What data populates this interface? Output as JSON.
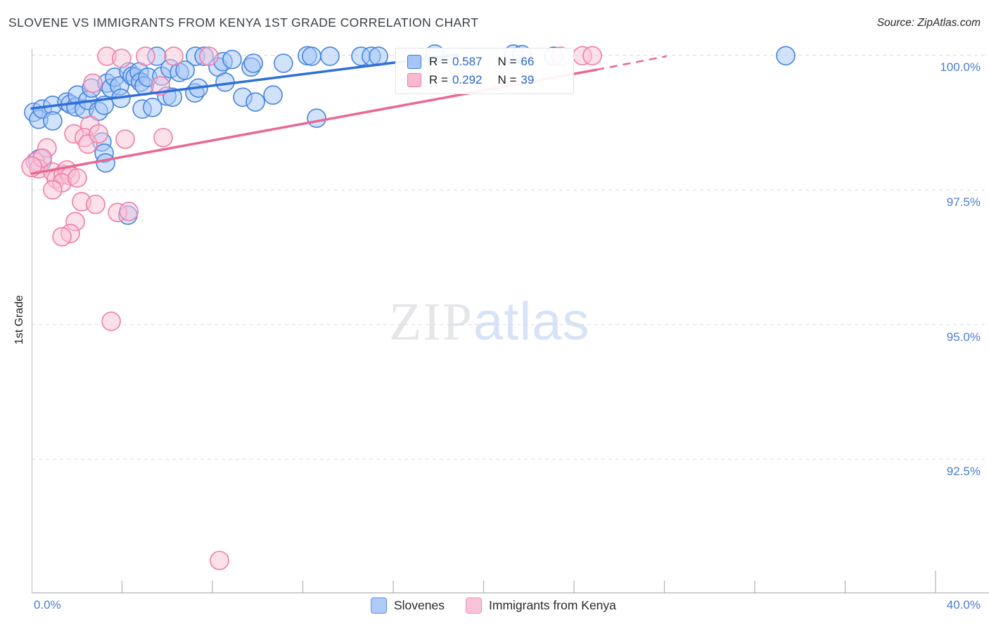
{
  "header": {
    "title": "SLOVENE VS IMMIGRANTS FROM KENYA 1ST GRADE CORRELATION CHART",
    "source": "Source: ZipAtlas.com"
  },
  "watermark": {
    "zip": "ZIP",
    "atlas": "atlas"
  },
  "chart_data": {
    "type": "scatter",
    "title": "SLOVENE VS IMMIGRANTS FROM KENYA 1ST GRADE CORRELATION CHART",
    "xlabel_left": "0.0%",
    "xlabel_right": "40.0%",
    "x_axis": {
      "min": 0,
      "max": 40,
      "tick_step": 4,
      "unit": "%"
    },
    "y_axis": {
      "label": "1st Grade",
      "min": 90,
      "max": 100.3,
      "ticks": [
        100.0,
        97.5,
        95.0,
        92.5
      ],
      "tick_labels": [
        "100.0%",
        "97.5%",
        "95.0%",
        "92.5%"
      ],
      "gridlines": "dashed"
    },
    "legend_position": "top-center",
    "series": [
      {
        "name": "Slovenes",
        "r_label": "R =",
        "r_value": "0.587",
        "n_label": "N =",
        "n_value": "66",
        "color": "#2f6fd6",
        "point_fill": "rgba(164,198,248,0.5)",
        "point_stroke": "#4683e0",
        "trend_solid": [
          [
            0,
            99.01
          ],
          [
            18.85,
            100.01
          ]
        ],
        "trend_dashed": null,
        "points": [
          [
            0.09,
            98.94
          ],
          [
            0.31,
            98.81
          ],
          [
            0.47,
            99.0
          ],
          [
            0.93,
            99.07
          ],
          [
            0.93,
            98.78
          ],
          [
            1.56,
            99.13
          ],
          [
            1.71,
            99.09
          ],
          [
            1.96,
            99.04
          ],
          [
            2.02,
            99.26
          ],
          [
            2.33,
            99.0
          ],
          [
            2.49,
            99.16
          ],
          [
            2.65,
            99.39
          ],
          [
            2.96,
            98.96
          ],
          [
            3.21,
            99.07
          ],
          [
            3.33,
            99.48
          ],
          [
            3.52,
            99.39
          ],
          [
            3.67,
            99.59
          ],
          [
            3.89,
            99.43
          ],
          [
            3.95,
            99.2
          ],
          [
            4.3,
            99.69
          ],
          [
            4.45,
            99.61
          ],
          [
            4.58,
            99.59
          ],
          [
            4.76,
            99.69
          ],
          [
            4.82,
            99.5
          ],
          [
            4.89,
            99.0
          ],
          [
            4.98,
            99.43
          ],
          [
            5.14,
            99.59
          ],
          [
            5.35,
            99.03
          ],
          [
            5.54,
            99.98
          ],
          [
            5.76,
            99.61
          ],
          [
            5.98,
            99.24
          ],
          [
            6.13,
            99.75
          ],
          [
            6.23,
            99.22
          ],
          [
            6.54,
            99.68
          ],
          [
            6.79,
            99.72
          ],
          [
            7.22,
            99.3
          ],
          [
            7.25,
            99.98
          ],
          [
            7.38,
            99.39
          ],
          [
            7.63,
            99.98
          ],
          [
            8.25,
            99.78
          ],
          [
            8.47,
            99.88
          ],
          [
            8.56,
            99.5
          ],
          [
            8.87,
            99.92
          ],
          [
            9.34,
            99.22
          ],
          [
            9.71,
            99.78
          ],
          [
            9.81,
            99.85
          ],
          [
            9.9,
            99.13
          ],
          [
            10.68,
            99.26
          ],
          [
            11.14,
            99.85
          ],
          [
            12.2,
            99.99
          ],
          [
            12.39,
            99.98
          ],
          [
            12.61,
            98.83
          ],
          [
            13.2,
            99.98
          ],
          [
            14.57,
            99.98
          ],
          [
            15.03,
            99.98
          ],
          [
            15.35,
            99.98
          ],
          [
            17.84,
            100.02
          ],
          [
            21.32,
            100.02
          ],
          [
            21.7,
            100.01
          ],
          [
            23.1,
            99.98
          ],
          [
            33.37,
            99.99
          ],
          [
            3.11,
            98.39
          ],
          [
            3.21,
            98.18
          ],
          [
            3.27,
            98.0
          ],
          [
            4.26,
            97.03
          ],
          [
            0.37,
            98.04,
            16
          ]
        ]
      },
      {
        "name": "Immigrants from Kenya",
        "r_label": "R =",
        "r_value": "0.292",
        "n_label": "N =",
        "n_value": "39",
        "color": "#e9688f",
        "point_fill": "rgba(250,196,216,0.5)",
        "point_stroke": "#f07ca6",
        "trend_solid": [
          [
            0,
            97.8
          ],
          [
            25.0,
            99.73
          ]
        ],
        "trend_dashed": [
          [
            25.0,
            99.73
          ],
          [
            28.1,
            99.98
          ]
        ],
        "points": [
          [
            3.33,
            99.98
          ],
          [
            3.98,
            99.94
          ],
          [
            5.04,
            99.98
          ],
          [
            6.29,
            99.98
          ],
          [
            7.84,
            99.98
          ],
          [
            2.71,
            99.48
          ],
          [
            5.7,
            99.43
          ],
          [
            2.58,
            98.7
          ],
          [
            1.87,
            98.54
          ],
          [
            2.33,
            98.47
          ],
          [
            2.49,
            98.35
          ],
          [
            2.96,
            98.54
          ],
          [
            4.14,
            98.44
          ],
          [
            5.82,
            98.47
          ],
          [
            0.68,
            98.28
          ],
          [
            0.16,
            98.02
          ],
          [
            0.31,
            97.89
          ],
          [
            0.47,
            98.09
          ],
          [
            0.93,
            97.83
          ],
          [
            1.09,
            97.7
          ],
          [
            1.4,
            97.79
          ],
          [
            1.56,
            97.87
          ],
          [
            1.71,
            97.76
          ],
          [
            1.34,
            97.63
          ],
          [
            2.02,
            97.72
          ],
          [
            0.0,
            97.93,
            14
          ],
          [
            0.93,
            97.5
          ],
          [
            2.21,
            97.28
          ],
          [
            2.83,
            97.23
          ],
          [
            3.8,
            97.08
          ],
          [
            4.3,
            97.1
          ],
          [
            1.93,
            96.91
          ],
          [
            1.71,
            96.69
          ],
          [
            1.34,
            96.63
          ],
          [
            3.52,
            95.06
          ],
          [
            8.31,
            90.62
          ],
          [
            23.41,
            99.98
          ],
          [
            24.37,
            99.99
          ],
          [
            24.81,
            99.99
          ]
        ]
      }
    ]
  }
}
